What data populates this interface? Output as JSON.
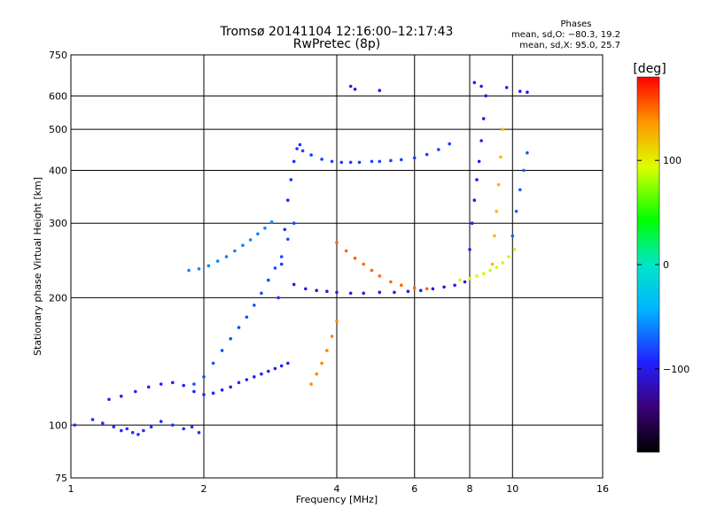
{
  "chart_data": {
    "type": "scatter",
    "title": "Tromsø 20141104 12:16:00–12:17:43",
    "subtitle": "RwPretec (8p)",
    "xlabel": "Frequency [MHz]",
    "ylabel": "Stationary phase Virtual Height [km]",
    "x_scale": "log",
    "y_scale": "log",
    "xlim": [
      1,
      16
    ],
    "ylim": [
      75,
      750
    ],
    "x_ticks": [
      "1",
      "2",
      "4",
      "6",
      "8",
      "10",
      "16"
    ],
    "x_tick_values": [
      1,
      2,
      4,
      6,
      8,
      10,
      16
    ],
    "y_ticks": [
      "75",
      "100",
      "200",
      "300",
      "400",
      "500",
      "600",
      "750"
    ],
    "y_tick_values": [
      75,
      100,
      200,
      300,
      400,
      500,
      600,
      750
    ],
    "grid": true,
    "phase_box": {
      "heading": "Phases",
      "line1": "mean, sd,O: −80.3, 19.2",
      "line2": "mean, sd,X:  95.0, 25.7"
    },
    "colorbar": {
      "label": "[deg]",
      "ticks": [
        "100",
        "0",
        "−100"
      ],
      "tick_values": [
        100,
        0,
        -100
      ],
      "range": [
        -180,
        180
      ]
    },
    "series": [
      {
        "x": [
          1.02,
          1.12,
          1.18,
          1.25,
          1.3,
          1.34,
          1.38,
          1.42,
          1.46,
          1.52,
          1.6,
          1.7,
          1.8,
          1.88,
          1.95
        ],
        "y": [
          100,
          103,
          101,
          99,
          97,
          98,
          96,
          95,
          97,
          99,
          102,
          100,
          98,
          99,
          96
        ],
        "phase": -105
      },
      {
        "x": [
          1.22,
          1.3,
          1.4,
          1.5,
          1.6,
          1.7,
          1.8,
          1.9,
          2.0,
          2.1,
          2.2,
          2.3,
          2.4,
          2.5,
          2.6,
          2.7,
          2.8,
          2.9,
          3.0,
          3.1
        ],
        "y": [
          115,
          117,
          120,
          123,
          125,
          126,
          124,
          120,
          118,
          119,
          121,
          123,
          126,
          128,
          130,
          132,
          134,
          136,
          138,
          140
        ],
        "phase": -110
      },
      {
        "x": [
          1.9,
          2.0,
          2.1,
          2.2,
          2.3,
          2.4,
          2.5,
          2.6,
          2.7,
          2.8,
          2.9,
          3.0,
          3.1,
          3.2
        ],
        "y": [
          125,
          130,
          140,
          150,
          160,
          170,
          180,
          192,
          205,
          220,
          235,
          250,
          275,
          300
        ],
        "phase": -95
      },
      {
        "x": [
          1.85,
          1.95,
          2.05,
          2.15,
          2.25,
          2.35,
          2.45,
          2.55,
          2.65,
          2.75,
          2.85
        ],
        "y": [
          232,
          234,
          238,
          244,
          250,
          258,
          266,
          274,
          283,
          292,
          302
        ],
        "phase": -75
      },
      {
        "x": [
          2.95,
          3.0,
          3.05,
          3.1,
          3.15,
          3.2,
          3.25,
          3.3
        ],
        "y": [
          200,
          240,
          290,
          340,
          380,
          420,
          450,
          460
        ],
        "phase": -105
      },
      {
        "x": [
          3.35,
          3.5,
          3.7,
          3.9,
          4.1,
          4.3,
          4.5,
          4.8,
          5.0,
          5.3,
          5.6,
          6.0,
          6.4,
          6.8,
          7.2
        ],
        "y": [
          445,
          435,
          425,
          420,
          418,
          418,
          418,
          420,
          420,
          422,
          424,
          428,
          436,
          448,
          462
        ],
        "phase": -100
      },
      {
        "x": [
          3.2,
          3.4,
          3.6,
          3.8,
          4.0,
          4.3,
          4.6,
          5.0,
          5.4,
          5.8,
          6.2,
          6.6,
          7.0,
          7.4,
          7.8
        ],
        "y": [
          215,
          210,
          208,
          207,
          206,
          205,
          205,
          206,
          206,
          207,
          208,
          210,
          212,
          214,
          218
        ],
        "phase": -115
      },
      {
        "x": [
          3.5,
          3.6,
          3.7,
          3.8,
          3.9,
          4.0
        ],
        "y": [
          125,
          132,
          140,
          150,
          162,
          176
        ],
        "phase": 140
      },
      {
        "x": [
          4.0,
          4.2,
          4.4,
          4.6,
          4.8,
          5.0,
          5.3,
          5.6,
          6.0,
          6.4
        ],
        "y": [
          270,
          258,
          248,
          240,
          232,
          225,
          218,
          214,
          211,
          210
        ],
        "phase": 150
      },
      {
        "x": [
          7.6,
          8.0,
          8.3,
          8.6,
          8.9,
          9.2,
          9.5,
          9.8,
          10.1
        ],
        "y": [
          220,
          222,
          225,
          228,
          232,
          236,
          242,
          250,
          260
        ],
        "phase": 85
      },
      {
        "x": [
          8.0,
          8.1,
          8.2,
          8.3,
          8.4,
          8.5,
          8.6,
          8.7
        ],
        "y": [
          260,
          300,
          340,
          380,
          420,
          470,
          530,
          600
        ],
        "phase": -115
      },
      {
        "x": [
          9.0,
          9.1,
          9.2,
          9.3,
          9.4,
          9.5
        ],
        "y": [
          240,
          280,
          320,
          370,
          430,
          500
        ],
        "phase": 120
      },
      {
        "x": [
          10.0,
          10.2,
          10.4,
          10.6,
          10.8
        ],
        "y": [
          280,
          320,
          360,
          400,
          440
        ],
        "phase": -90
      },
      {
        "x": [
          4.3,
          4.4,
          5.0,
          8.2,
          8.5,
          9.7,
          10.4,
          10.8
        ],
        "y": [
          632,
          622,
          618,
          645,
          632,
          628,
          615,
          612
        ],
        "phase": -115
      }
    ]
  }
}
